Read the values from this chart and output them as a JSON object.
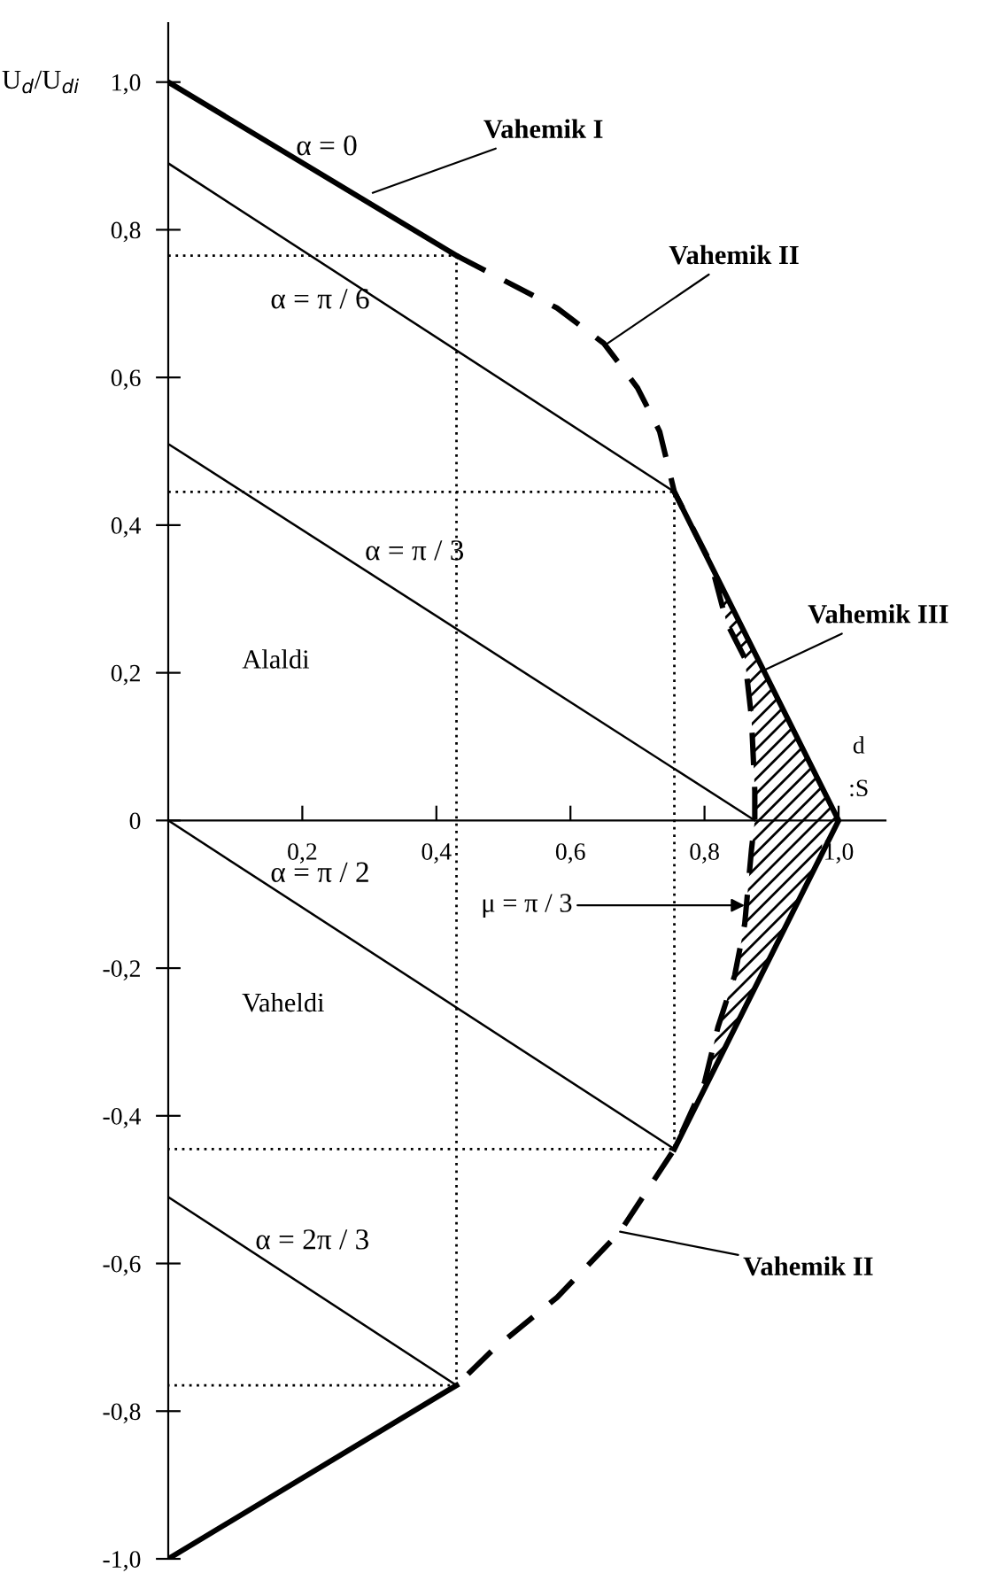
{
  "chart_data": {
    "type": "line",
    "xlabel": "d\n:S",
    "ylabel": "U$_{d}$/U$_{di}$",
    "xlim": [
      0,
      1.07
    ],
    "ylim": [
      -1.0,
      1.08
    ],
    "xticks": [
      {
        "value": 0.2,
        "label": "0,2"
      },
      {
        "value": 0.4,
        "label": "0,4"
      },
      {
        "value": 0.6,
        "label": "0,6"
      },
      {
        "value": 0.8,
        "label": "0,8"
      },
      {
        "value": 1.0,
        "label": "1,0"
      }
    ],
    "yticks": [
      {
        "value": -1.0,
        "label": "-1,0"
      },
      {
        "value": -0.8,
        "label": "-0,8"
      },
      {
        "value": -0.6,
        "label": "-0,6"
      },
      {
        "value": -0.4,
        "label": "-0,4"
      },
      {
        "value": -0.2,
        "label": "-0,2"
      },
      0,
      {
        "value": 0.2,
        "label": "0,2"
      },
      {
        "value": 0.4,
        "label": "0,4"
      },
      {
        "value": 0.6,
        "label": "0,6"
      },
      {
        "value": 0.8,
        "label": "0,8"
      },
      {
        "value": 1.0,
        "label": "1,0"
      }
    ],
    "grid": false,
    "legend": false,
    "marker": "none",
    "series": [
      {
        "name": "α = 0",
        "color": "#000000",
        "x": [
          0,
          0.43
        ],
        "values": [
          1.0,
          0.765
        ]
      },
      {
        "name": "α = π / 6",
        "color": "#000000",
        "x": [
          0,
          0.755
        ],
        "values": [
          0.89,
          0.445
        ]
      },
      {
        "name": "α = π / 3",
        "color": "#000000",
        "x": [
          0,
          0.875
        ],
        "values": [
          0.51,
          0
        ]
      },
      {
        "name": "α = π / 2",
        "color": "#000000",
        "x": [
          0,
          0.755
        ],
        "values": [
          0,
          -0.445
        ]
      },
      {
        "name": "α = 2π / 3",
        "color": "#000000",
        "x": [
          0,
          0.43
        ],
        "values": [
          -0.51,
          -0.765
        ]
      },
      {
        "color": "#000000",
        "x": [
          0,
          0.43
        ],
        "values": [
          -1.0,
          -0.765
        ]
      },
      {
        "color": "#000000",
        "x": [
          0.755,
          1.0,
          0.755
        ],
        "values": [
          0.445,
          0,
          -0.445
        ]
      },
      {
        "color": "#000000",
        "line_style": "dashed",
        "x": [
          0.43,
          0.58,
          0.65,
          0.7,
          0.733,
          0.755,
          0.81,
          0.833,
          0.86,
          0.87,
          0.875,
          0.875,
          0.87,
          0.86,
          0.845,
          0.82,
          0.8,
          0.755,
          0.674,
          0.58,
          0.483,
          0.43
        ],
        "values": [
          0.765,
          0.694,
          0.646,
          0.586,
          0.527,
          0.445,
          0.347,
          0.268,
          0.22,
          0.14,
          0.04,
          0,
          -0.04,
          -0.14,
          -0.21,
          -0.28,
          -0.355,
          -0.445,
          -0.557,
          -0.646,
          -0.718,
          -0.765
        ]
      },
      {
        "color": "#000000",
        "line_style": "dotted",
        "x": [
          0,
          0.43,
          0.43,
          0,
          null,
          0,
          0.755,
          0.755,
          0
        ],
        "values": [
          0.765,
          0.765,
          -0.765,
          -0.765,
          null,
          0.445,
          0.445,
          -0.445,
          -0.445
        ]
      }
    ],
    "annotations": [
      {
        "text": "Vahemik I",
        "x": 0.305,
        "y": 0.85
      },
      {
        "text": "Vahemik II",
        "x": 0.655,
        "y": 0.646
      },
      {
        "text": "Vahemik III",
        "x": 0.888,
        "y": 0.203
      },
      {
        "text": "μ = π / 3",
        "x": 0.86,
        "y": -0.115
      },
      {
        "text": "Vahemik II",
        "x": 0.674,
        "y": -0.557
      },
      "Alaldi",
      "Vaheldi"
    ]
  }
}
